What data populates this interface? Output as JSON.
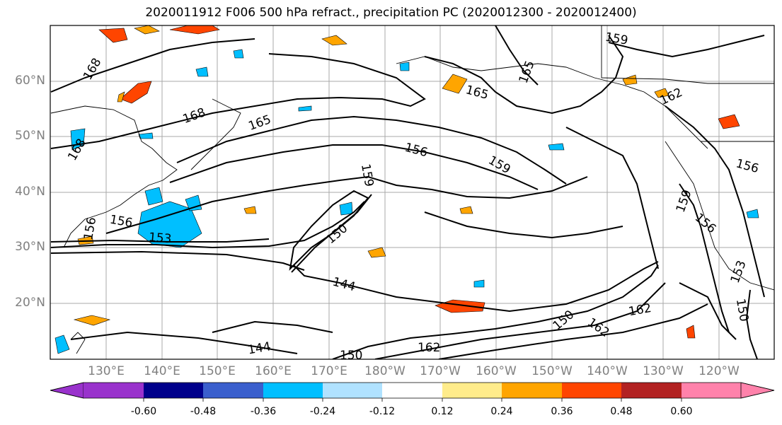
{
  "title": "2020011912 F006 500 hPa refract., precipitation PC (2020012300 - 2020012400)",
  "lat_labels": [
    "60°N",
    "50°N",
    "40°N",
    "30°N",
    "20°N"
  ],
  "lon_labels": [
    "130°E",
    "140°E",
    "150°E",
    "160°E",
    "170°E",
    "180°W",
    "170°W",
    "160°W",
    "150°W",
    "140°W",
    "130°W",
    "120°W"
  ],
  "contour_labels": [
    "168",
    "168",
    "168",
    "165",
    "165",
    "165",
    "159",
    "162",
    "156",
    "159",
    "159",
    "156",
    "156",
    "153",
    "144",
    "150",
    "162",
    "162",
    "150",
    "156",
    "159",
    "156",
    "153",
    "150",
    "144",
    "150",
    "162"
  ],
  "colorbar": {
    "ticks": [
      "-0.60",
      "-0.48",
      "-0.36",
      "-0.24",
      "-0.12",
      "0.12",
      "0.24",
      "0.36",
      "0.48",
      "0.60"
    ],
    "colors": [
      "#9932cc",
      "#00008b",
      "#3a5fcd",
      "#00bfff",
      "#b0e2ff",
      "#ffffff",
      "#ffec8b",
      "#ffa500",
      "#ff4500",
      "#b22222",
      "#ff82ab"
    ]
  }
}
